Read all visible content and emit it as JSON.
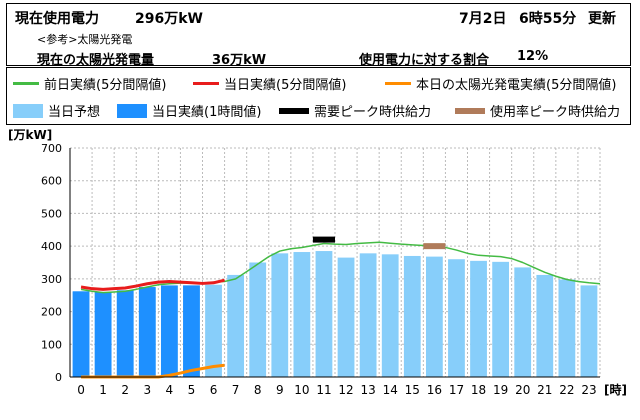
{
  "header": {
    "current_usage_label": "現在使用電力",
    "current_usage_value": "296万kW",
    "update_date": "7月2日",
    "update_time": "6時55分",
    "update_label": "更新",
    "reference_label": "<参考>太陽光発電",
    "solar_label": "現在の太陽光発電量",
    "solar_value": "36万kW",
    "ratio_label": "使用電力に対する割合",
    "ratio_value": "12%"
  },
  "legend": [
    {
      "label": "前日実績(5分間隔値)",
      "color": "#44bb44",
      "kind": "line"
    },
    {
      "label": "当日実績(5分間隔値)",
      "color": "#e81c1c",
      "kind": "line"
    },
    {
      "label": "本日の太陽光発電実績(5分間隔値)",
      "color": "#ff8c00",
      "kind": "line"
    },
    {
      "label": "当日予想",
      "color": "#87cefa",
      "kind": "box"
    },
    {
      "label": "当日実績(1時間値)",
      "color": "#1e90ff",
      "kind": "box"
    },
    {
      "label": "需要ピーク時供給力",
      "color": "#000000",
      "kind": "thick"
    },
    {
      "label": "使用率ピーク時供給力",
      "color": "#b07b5a",
      "kind": "thick"
    }
  ],
  "chart_data": {
    "type": "bar",
    "ylabel": "[万kW]",
    "xlabel": "[時]",
    "ylim": [
      0,
      700
    ],
    "yticks": [
      0,
      100,
      200,
      300,
      400,
      500,
      600,
      700
    ],
    "categories": [
      "0",
      "1",
      "2",
      "3",
      "4",
      "5",
      "6",
      "7",
      "8",
      "9",
      "10",
      "11",
      "12",
      "13",
      "14",
      "15",
      "16",
      "17",
      "18",
      "19",
      "20",
      "21",
      "22",
      "23"
    ],
    "series": [
      {
        "name": "当日予想",
        "color": "#87cefa",
        "values": [
          260,
          258,
          262,
          272,
          278,
          280,
          282,
          312,
          350,
          378,
          382,
          385,
          365,
          378,
          375,
          370,
          368,
          360,
          355,
          352,
          335,
          312,
          298,
          280
        ]
      },
      {
        "name": "当日実績(1時間値)",
        "color": "#1e90ff",
        "values": [
          262,
          260,
          265,
          275,
          280,
          280,
          null,
          null,
          null,
          null,
          null,
          null,
          null,
          null,
          null,
          null,
          null,
          null,
          null,
          null,
          null,
          null,
          null,
          null
        ]
      }
    ],
    "lines": [
      {
        "name": "前日実績(5分間隔値)",
        "color": "#44bb44",
        "x": [
          0,
          0.5,
          1,
          1.5,
          2,
          2.5,
          3,
          3.5,
          4,
          4.5,
          5,
          5.5,
          6,
          6.5,
          7,
          7.5,
          8,
          8.5,
          9,
          9.5,
          10,
          10.5,
          11,
          11.5,
          12,
          12.5,
          13,
          13.5,
          14,
          14.5,
          15,
          15.5,
          16,
          16.5,
          17,
          17.5,
          18,
          18.5,
          19,
          19.5,
          20,
          20.5,
          21,
          21.5,
          22,
          22.5,
          23,
          23.5
        ],
        "y": [
          268,
          262,
          258,
          260,
          262,
          268,
          275,
          282,
          285,
          287,
          288,
          287,
          290,
          292,
          300,
          322,
          345,
          368,
          385,
          392,
          396,
          402,
          408,
          406,
          405,
          408,
          410,
          412,
          409,
          406,
          404,
          402,
          400,
          396,
          388,
          378,
          372,
          370,
          368,
          362,
          350,
          335,
          320,
          308,
          298,
          292,
          288,
          285
        ]
      },
      {
        "name": "当日実績(5分間隔値)",
        "color": "#e81c1c",
        "x": [
          0,
          0.5,
          1,
          1.5,
          2,
          2.5,
          3,
          3.5,
          4,
          4.5,
          5,
          5.5,
          6,
          6.5
        ],
        "y": [
          275,
          270,
          268,
          270,
          272,
          278,
          285,
          290,
          292,
          290,
          288,
          286,
          288,
          296
        ]
      },
      {
        "name": "本日の太陽光発電実績(5分間隔値)",
        "color": "#ff8c00",
        "x": [
          0,
          0.5,
          1,
          1.5,
          2,
          2.5,
          3,
          3.5,
          4,
          4.5,
          5,
          5.5,
          6,
          6.5
        ],
        "y": [
          0,
          0,
          0,
          0,
          0,
          0,
          0,
          0,
          5,
          12,
          20,
          26,
          32,
          36
        ]
      }
    ],
    "peak_marks": [
      {
        "name": "需要ピーク時供給力",
        "hour": 11,
        "value": 420,
        "color": "#000000"
      },
      {
        "name": "使用率ピーク時供給力",
        "hour": 16,
        "value": 400,
        "color": "#b07b5a"
      }
    ]
  }
}
